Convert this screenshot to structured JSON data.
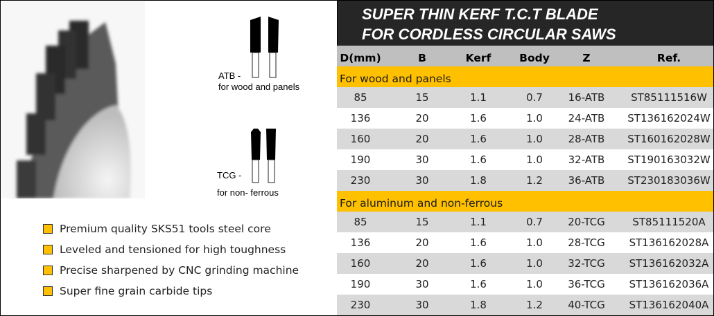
{
  "title": {
    "line1": "SUPER THIN KERF T.C.T BLADE",
    "line2": "FOR CORDLESS CIRCULAR SAWS"
  },
  "teeth": {
    "atb_label": "ATB -",
    "atb_desc": "for wood and panels",
    "tcg_label": "TCG -",
    "tcg_desc": "for non- ferrous"
  },
  "features": [
    "Premium quality SKS51 tools steel core",
    "Leveled and tensioned for high toughness",
    "Precise sharpened by CNC grinding machine",
    "Super fine grain carbide tips"
  ],
  "table": {
    "headers": [
      "D(mm)",
      "B",
      "Kerf",
      "Body",
      "Z",
      "Ref."
    ],
    "sections": [
      {
        "title": "For wood and panels",
        "rows": [
          [
            "85",
            "15",
            "1.1",
            "0.7",
            "16-ATB",
            "ST85111516W"
          ],
          [
            "136",
            "20",
            "1.6",
            "1.0",
            "24-ATB",
            "ST136162024W"
          ],
          [
            "160",
            "20",
            "1.6",
            "1.0",
            "28-ATB",
            "ST160162028W"
          ],
          [
            "190",
            "30",
            "1.6",
            "1.0",
            "32-ATB",
            "ST190163032W"
          ],
          [
            "230",
            "30",
            "1.8",
            "1.2",
            "36-ATB",
            "ST230183036W"
          ]
        ]
      },
      {
        "title": "For aluminum and non-ferrous",
        "rows": [
          [
            "85",
            "15",
            "1.1",
            "0.7",
            "20-TCG",
            "ST85111520A"
          ],
          [
            "136",
            "20",
            "1.6",
            "1.0",
            "28-TCG",
            "ST136162028A"
          ],
          [
            "160",
            "20",
            "1.6",
            "1.0",
            "32-TCG",
            "ST136162032A"
          ],
          [
            "190",
            "30",
            "1.6",
            "1.0",
            "36-TCG",
            "ST136162036A"
          ],
          [
            "230",
            "30",
            "1.8",
            "1.2",
            "40-TCG",
            "ST136162040A"
          ]
        ]
      }
    ]
  },
  "colors": {
    "accent": "#ffc000",
    "title_bg": "#262626",
    "header_bg": "#bfbfbf",
    "stripe": "#d9d9d9"
  }
}
